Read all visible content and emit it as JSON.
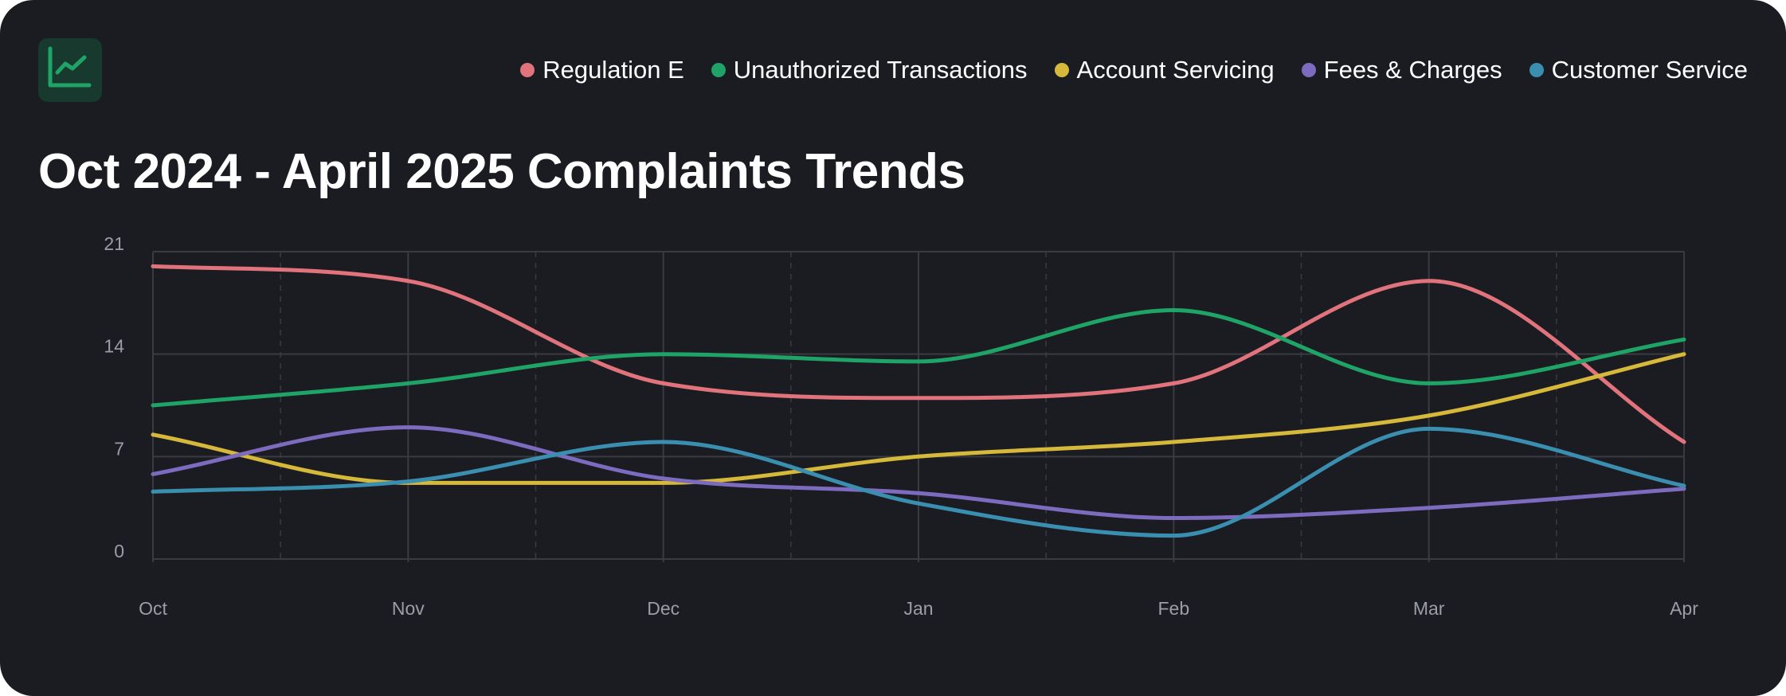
{
  "colors": {
    "background": "#1b1c22",
    "logo_bg": "#183a2e",
    "logo_stroke": "#1fa367",
    "grid": "#3a3b41",
    "tick_text": "#9b9ea6"
  },
  "logo": {
    "icon": "line-chart-icon"
  },
  "chart_data": {
    "type": "line",
    "title": "Oct 2024 - April 2025 Complaints Trends",
    "xlabel": "",
    "ylabel": "",
    "categories": [
      "Oct",
      "Nov",
      "Dec",
      "Jan",
      "Feb",
      "Mar",
      "Apr"
    ],
    "ylim": [
      0,
      21
    ],
    "yticks": [
      0,
      7,
      14,
      21
    ],
    "legend_position": "top-right",
    "grid": true,
    "curve": "smooth",
    "series": [
      {
        "name": "Regulation E",
        "color": "#e0737c",
        "values": [
          20,
          19,
          12,
          11,
          12,
          19,
          8
        ]
      },
      {
        "name": "Unauthorized Transactions",
        "color": "#1fa367",
        "values": [
          10.5,
          12,
          14,
          13.5,
          17,
          12,
          15
        ]
      },
      {
        "name": "Account Servicing",
        "color": "#d6b83b",
        "values": [
          8.5,
          5.2,
          5.2,
          7,
          8,
          9.8,
          14
        ]
      },
      {
        "name": "Fees & Charges",
        "color": "#7d6bbf",
        "values": [
          5.8,
          9,
          5.5,
          4.5,
          2.8,
          3.5,
          4.8
        ]
      },
      {
        "name": "Customer Service",
        "color": "#3a8fb0",
        "values": [
          4.6,
          5.3,
          8,
          3.8,
          1.6,
          8.9,
          5
        ]
      }
    ]
  }
}
